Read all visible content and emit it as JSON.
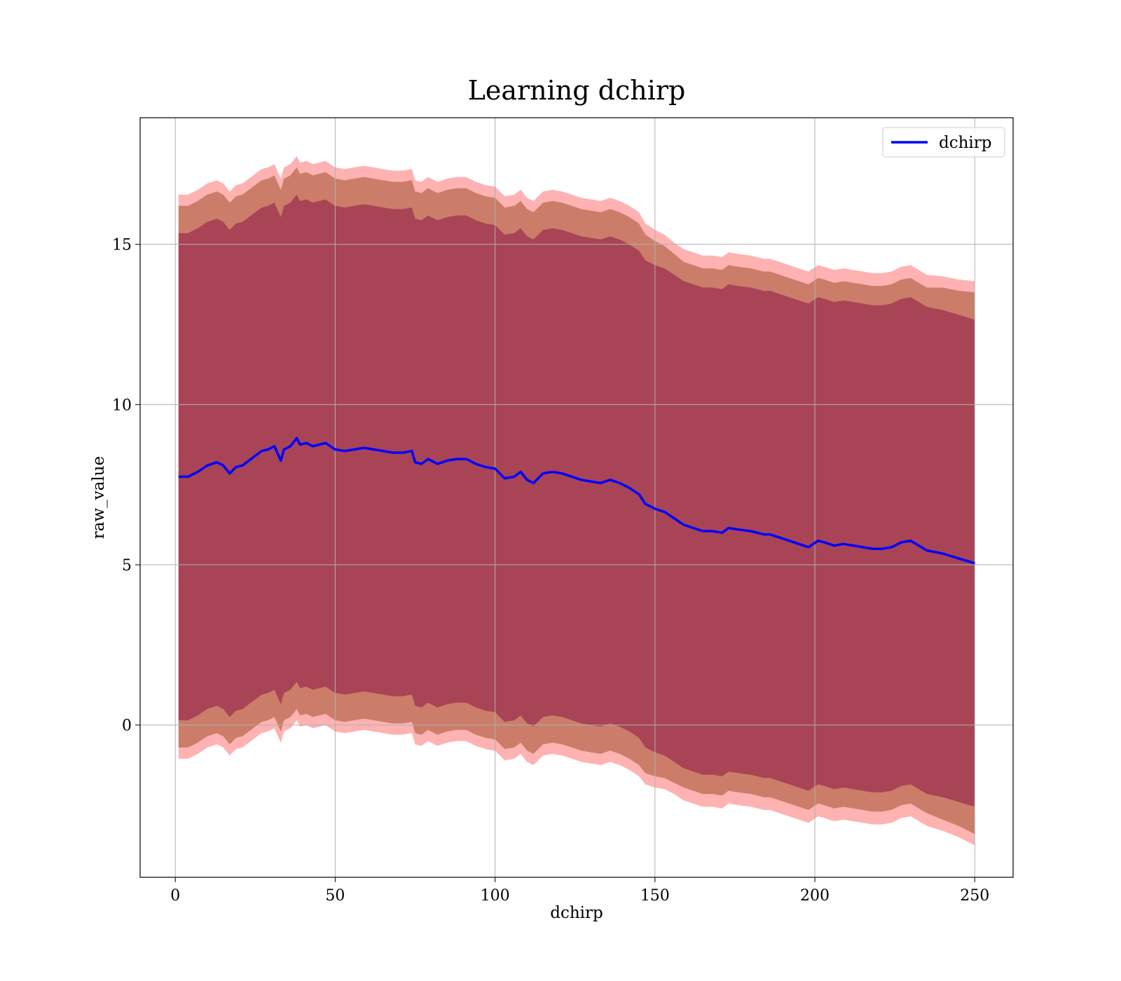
{
  "chart_data": {
    "type": "line",
    "title": "Learning dchirp",
    "xlabel": "dchirp",
    "ylabel": "raw_value",
    "xlim": [
      -11,
      262
    ],
    "ylim": [
      -4.75,
      18.95
    ],
    "xticks": [
      0,
      50,
      100,
      150,
      200,
      250
    ],
    "yticks": [
      0,
      5,
      10,
      15
    ],
    "grid": true,
    "legend": {
      "position": "upper right",
      "entries": [
        "dchirp"
      ]
    },
    "colors": {
      "line": "#0000ff",
      "band_outer": "#ff0000",
      "band_middle": "#a0522d",
      "band_inner": "#800040",
      "grid": "#b0b0b0"
    },
    "series": [
      {
        "name": "dchirp",
        "x": [
          1,
          4,
          7,
          10,
          13,
          15,
          17,
          19,
          21,
          23,
          25,
          27,
          29,
          31,
          33,
          34,
          36,
          38,
          39,
          41,
          43,
          45,
          47,
          50,
          53,
          56,
          59,
          62,
          65,
          68,
          71,
          74,
          75,
          77,
          79,
          82,
          85,
          88,
          91,
          94,
          97,
          100,
          103,
          106,
          108,
          110,
          112,
          115,
          118,
          121,
          124,
          127,
          130,
          133,
          136,
          139,
          142,
          145,
          147,
          150,
          153,
          156,
          159,
          162,
          165,
          168,
          171,
          173,
          176,
          180,
          184,
          186,
          189,
          192,
          195,
          198,
          201,
          203,
          206,
          209,
          212,
          215,
          218,
          221,
          224,
          227,
          230,
          235,
          240,
          245,
          250
        ],
        "values": [
          7.75,
          7.75,
          7.9,
          8.1,
          8.2,
          8.1,
          7.85,
          8.05,
          8.1,
          8.25,
          8.4,
          8.55,
          8.6,
          8.7,
          8.25,
          8.6,
          8.7,
          8.95,
          8.75,
          8.8,
          8.7,
          8.75,
          8.8,
          8.6,
          8.55,
          8.6,
          8.65,
          8.6,
          8.55,
          8.5,
          8.5,
          8.55,
          8.2,
          8.15,
          8.3,
          8.15,
          8.25,
          8.3,
          8.3,
          8.15,
          8.05,
          8.0,
          7.7,
          7.75,
          7.9,
          7.65,
          7.55,
          7.85,
          7.9,
          7.85,
          7.75,
          7.65,
          7.6,
          7.55,
          7.65,
          7.55,
          7.4,
          7.2,
          6.9,
          6.75,
          6.65,
          6.45,
          6.25,
          6.15,
          6.05,
          6.05,
          6.0,
          6.15,
          6.1,
          6.05,
          5.95,
          5.95,
          5.85,
          5.75,
          5.65,
          5.55,
          5.75,
          5.7,
          5.6,
          5.65,
          5.6,
          5.55,
          5.5,
          5.5,
          5.55,
          5.7,
          5.75,
          5.45,
          5.35,
          5.2,
          5.05
        ]
      }
    ],
    "bands": [
      {
        "name": "outer",
        "half_width": [
          8.8,
          8.8,
          8.8,
          8.8,
          8.8,
          8.8,
          8.8,
          8.8,
          8.8,
          8.8,
          8.8,
          8.8,
          8.8,
          8.8,
          8.8,
          8.8,
          8.8,
          8.8,
          8.8,
          8.8,
          8.8,
          8.8,
          8.8,
          8.8,
          8.8,
          8.8,
          8.8,
          8.8,
          8.8,
          8.8,
          8.8,
          8.8,
          8.8,
          8.8,
          8.8,
          8.8,
          8.8,
          8.8,
          8.8,
          8.8,
          8.8,
          8.8,
          8.8,
          8.8,
          8.8,
          8.8,
          8.8,
          8.8,
          8.8,
          8.8,
          8.8,
          8.8,
          8.8,
          8.8,
          8.8,
          8.8,
          8.8,
          8.8,
          8.75,
          8.7,
          8.65,
          8.6,
          8.6,
          8.6,
          8.6,
          8.6,
          8.6,
          8.6,
          8.6,
          8.6,
          8.6,
          8.6,
          8.6,
          8.6,
          8.6,
          8.6,
          8.6,
          8.6,
          8.6,
          8.6,
          8.6,
          8.6,
          8.6,
          8.6,
          8.6,
          8.6,
          8.6,
          8.6,
          8.65,
          8.7,
          8.8
        ]
      },
      {
        "name": "middle",
        "half_width": [
          8.45,
          8.45,
          8.45,
          8.45,
          8.45,
          8.45,
          8.45,
          8.45,
          8.45,
          8.45,
          8.45,
          8.45,
          8.45,
          8.45,
          8.45,
          8.45,
          8.45,
          8.45,
          8.45,
          8.45,
          8.45,
          8.45,
          8.45,
          8.45,
          8.45,
          8.45,
          8.45,
          8.45,
          8.45,
          8.45,
          8.45,
          8.45,
          8.45,
          8.45,
          8.45,
          8.45,
          8.45,
          8.45,
          8.45,
          8.45,
          8.45,
          8.45,
          8.45,
          8.45,
          8.45,
          8.45,
          8.45,
          8.45,
          8.45,
          8.45,
          8.45,
          8.45,
          8.45,
          8.45,
          8.45,
          8.45,
          8.45,
          8.45,
          8.4,
          8.35,
          8.3,
          8.25,
          8.2,
          8.2,
          8.2,
          8.2,
          8.2,
          8.2,
          8.2,
          8.2,
          8.2,
          8.2,
          8.2,
          8.2,
          8.2,
          8.2,
          8.2,
          8.2,
          8.2,
          8.2,
          8.2,
          8.2,
          8.2,
          8.2,
          8.2,
          8.2,
          8.2,
          8.2,
          8.3,
          8.35,
          8.45
        ]
      },
      {
        "name": "inner",
        "half_width": [
          7.6,
          7.6,
          7.6,
          7.6,
          7.6,
          7.6,
          7.6,
          7.6,
          7.6,
          7.6,
          7.6,
          7.6,
          7.6,
          7.6,
          7.6,
          7.6,
          7.6,
          7.6,
          7.6,
          7.6,
          7.6,
          7.6,
          7.6,
          7.6,
          7.6,
          7.6,
          7.6,
          7.6,
          7.6,
          7.6,
          7.6,
          7.6,
          7.6,
          7.6,
          7.6,
          7.6,
          7.6,
          7.6,
          7.6,
          7.6,
          7.6,
          7.6,
          7.6,
          7.6,
          7.6,
          7.6,
          7.6,
          7.6,
          7.6,
          7.6,
          7.6,
          7.6,
          7.6,
          7.6,
          7.6,
          7.6,
          7.6,
          7.6,
          7.6,
          7.6,
          7.6,
          7.6,
          7.6,
          7.6,
          7.6,
          7.6,
          7.6,
          7.6,
          7.6,
          7.6,
          7.6,
          7.6,
          7.6,
          7.6,
          7.6,
          7.6,
          7.6,
          7.6,
          7.6,
          7.6,
          7.6,
          7.6,
          7.6,
          7.6,
          7.6,
          7.6,
          7.6,
          7.6,
          7.6,
          7.6,
          7.6
        ]
      }
    ]
  }
}
